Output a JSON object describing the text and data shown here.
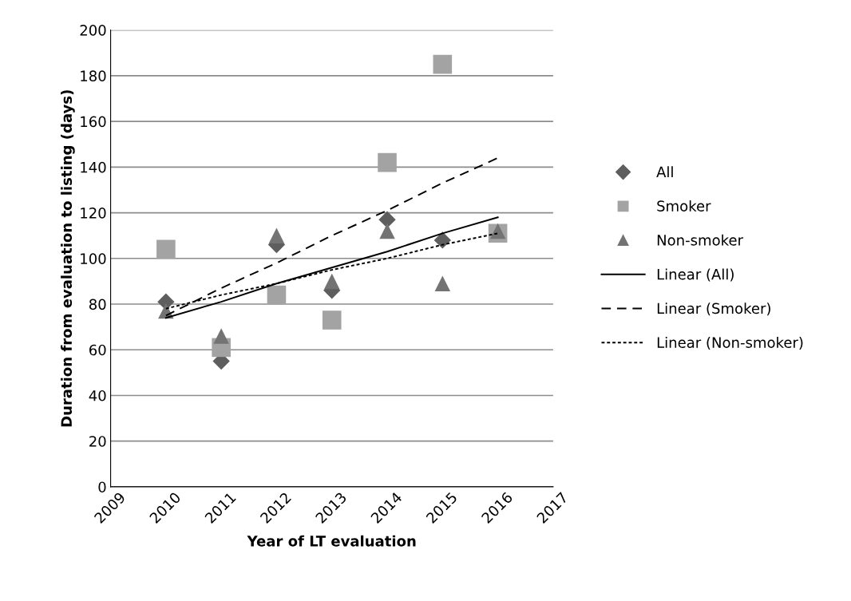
{
  "chart_data": {
    "type": "scatter",
    "xlabel": "Year of LT evaluation",
    "ylabel": "Duration from evaluation to listing (days)",
    "x": [
      2010,
      2011,
      2012,
      2013,
      2014,
      2015,
      2016
    ],
    "series": [
      {
        "name": "All",
        "color": "#5e5e5e",
        "marker": "diamond",
        "values": [
          81,
          55,
          106,
          86,
          117,
          108,
          null
        ]
      },
      {
        "name": "Smoker",
        "color": "#a3a3a3",
        "marker": "square",
        "values": [
          104,
          61,
          84,
          73,
          142,
          185,
          111
        ]
      },
      {
        "name": "Non-smoker",
        "color": "#737373",
        "marker": "triangle",
        "values": [
          77,
          66,
          110,
          90,
          112,
          89,
          112
        ]
      },
      {
        "name": "Linear (All)",
        "type": "line",
        "color": "#000000",
        "marker": "none",
        "line_style": "solid",
        "values": [
          74,
          81,
          89,
          96,
          103,
          111,
          118
        ]
      },
      {
        "name": "Linear (Smoker)",
        "type": "line",
        "color": "#000000",
        "marker": "none",
        "line_style": "dashed",
        "values": [
          75,
          87,
          98,
          110,
          121,
          133,
          144
        ]
      },
      {
        "name": "Linear (Non-smoker)",
        "type": "line",
        "color": "#000000",
        "marker": "none",
        "line_style": "dotted",
        "values": [
          78,
          84,
          89,
          95,
          100,
          106,
          111
        ]
      }
    ],
    "xlim": [
      2009,
      2017
    ],
    "xticks": [
      2009,
      2010,
      2011,
      2012,
      2013,
      2014,
      2015,
      2016,
      2017
    ],
    "ylim": [
      0,
      200
    ],
    "yticks": [
      0,
      20,
      40,
      60,
      80,
      100,
      120,
      140,
      160,
      180,
      200
    ],
    "grid": "y",
    "legend": "right"
  }
}
